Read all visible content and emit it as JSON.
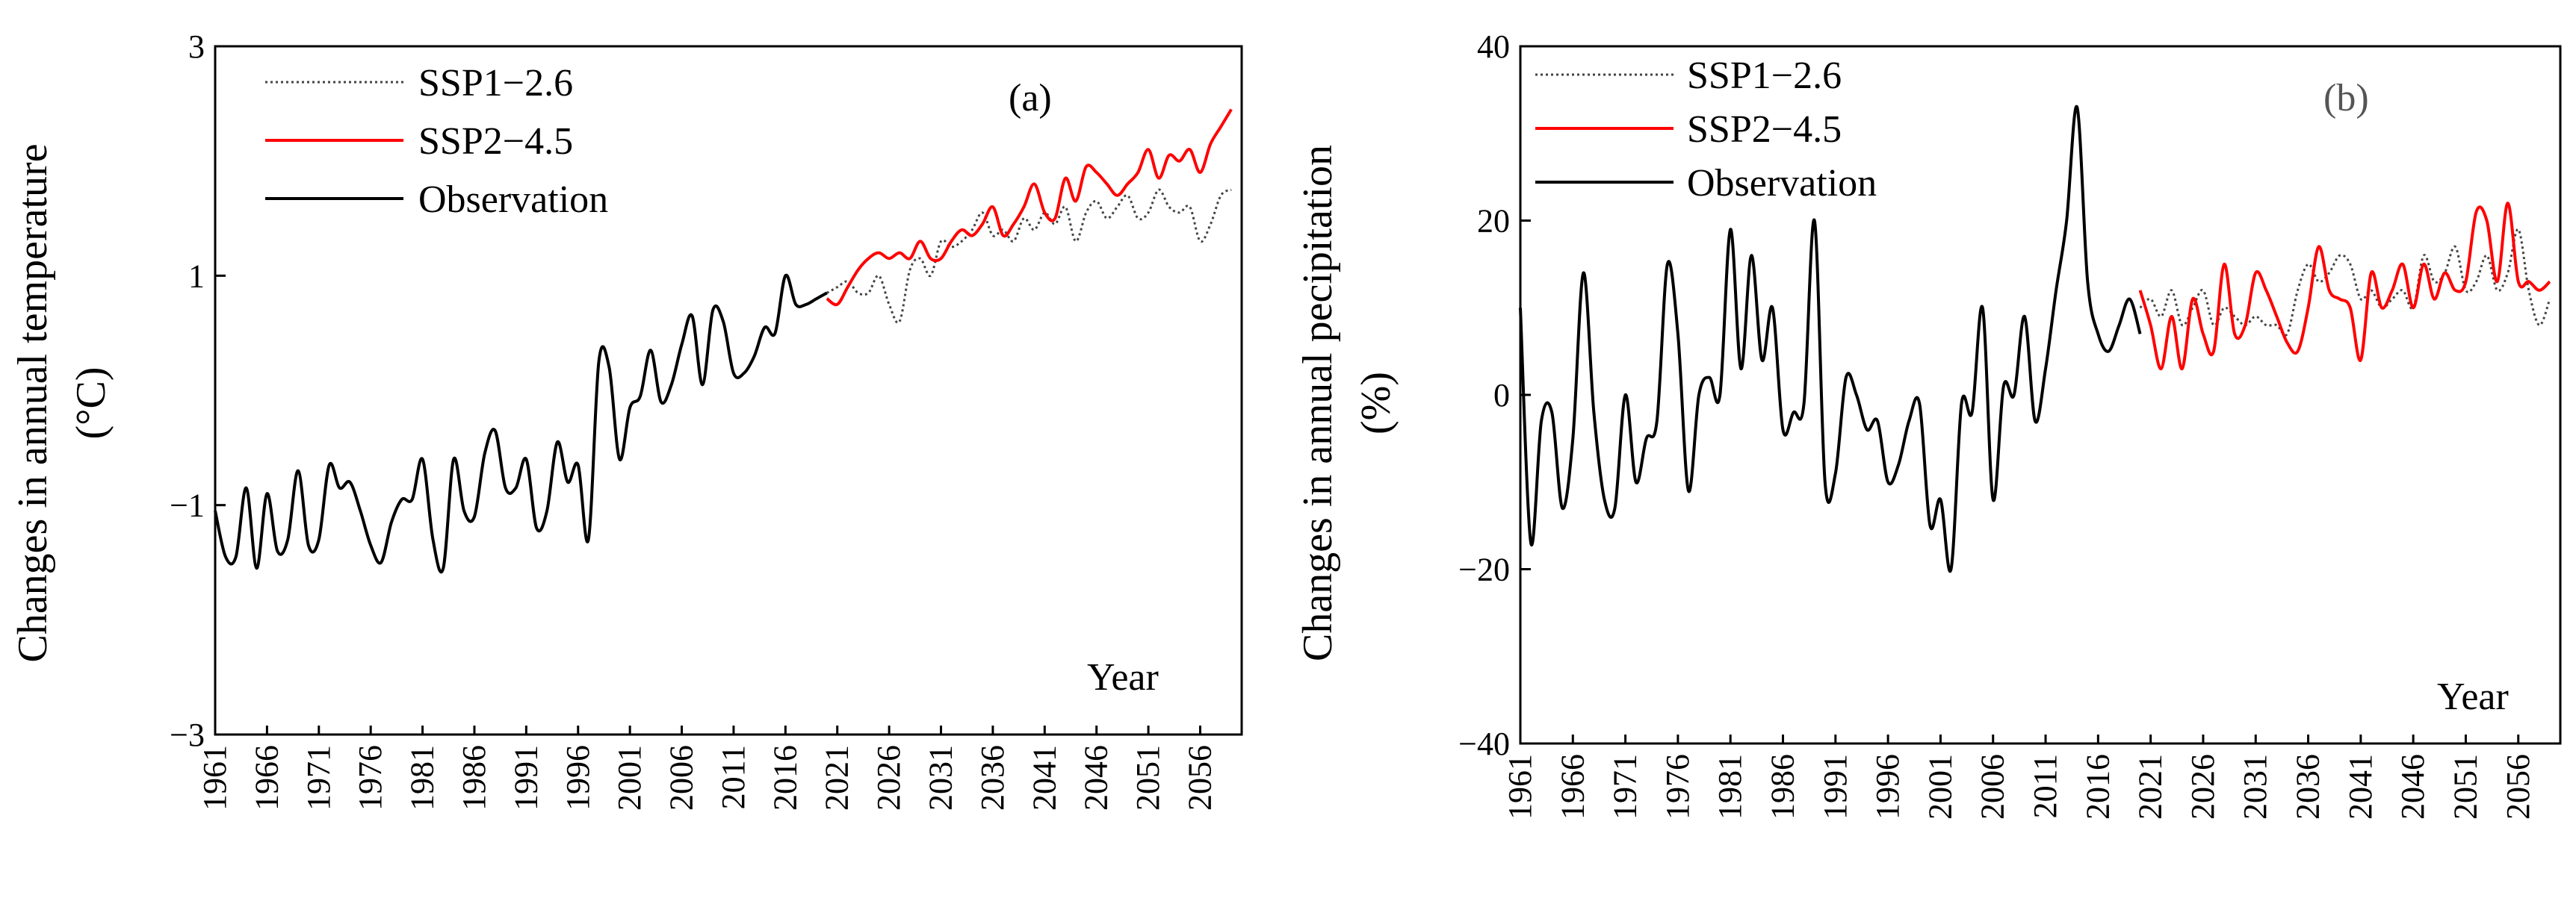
{
  "chart_data": [
    {
      "id": "a",
      "type": "line",
      "panel_label": "(a)",
      "xlabel": "Year",
      "ylabel_line1": "Changes in annual temperature",
      "ylabel_line2": "(°C)",
      "xlim": [
        1961,
        2060
      ],
      "ylim": [
        -3,
        3
      ],
      "yticks": [
        -3,
        -1,
        1,
        3
      ],
      "ytick_labels": [
        "−3",
        "−1",
        "1",
        "3"
      ],
      "xticks": [
        1961,
        1966,
        1971,
        1976,
        1981,
        1986,
        1991,
        1996,
        2001,
        2006,
        2011,
        2016,
        2021,
        2026,
        2031,
        2036,
        2041,
        2046,
        2051,
        2056
      ],
      "xtick_labels": [
        "1961",
        "1966",
        "1971",
        "1976",
        "1981",
        "1986",
        "1991",
        "1996",
        "2001",
        "2006",
        "2011",
        "2016",
        "2021",
        "2026",
        "2031",
        "2036",
        "2041",
        "2046",
        "2051",
        "2056"
      ],
      "legend": [
        "SSP1−2.6",
        "SSP2−4.5",
        "Observation"
      ],
      "series": [
        {
          "name": "Observation",
          "color": "#000000",
          "style": "solid",
          "x_start": 1961,
          "values": [
            -1.05,
            -1.45,
            -1.45,
            -0.85,
            -1.55,
            -0.9,
            -1.4,
            -1.3,
            -0.7,
            -1.35,
            -1.3,
            -0.65,
            -0.85,
            -0.8,
            -1.05,
            -1.35,
            -1.5,
            -1.15,
            -0.95,
            -0.95,
            -0.6,
            -1.3,
            -1.55,
            -0.6,
            -1.05,
            -1.1,
            -0.55,
            -0.35,
            -0.85,
            -0.85,
            -0.6,
            -1.2,
            -1.05,
            -0.45,
            -0.8,
            -0.65,
            -1.3,
            0.25,
            0.2,
            -0.6,
            -0.15,
            -0.05,
            0.35,
            -0.1,
            0.05,
            0.4,
            0.65,
            0.05,
            0.7,
            0.6,
            0.15,
            0.15,
            0.3,
            0.55,
            0.5,
            1.0,
            0.75,
            0.75,
            0.8,
            0.85
          ]
        },
        {
          "name": "SSP1−2.6",
          "color": "#444444",
          "style": "dotted",
          "x_start": 2020,
          "values": [
            0.85,
            0.9,
            0.95,
            0.85,
            0.85,
            1.0,
            0.75,
            0.6,
            1.05,
            1.15,
            1.0,
            1.3,
            1.25,
            1.3,
            1.4,
            1.55,
            1.35,
            1.4,
            1.3,
            1.5,
            1.4,
            1.55,
            1.45,
            1.6,
            1.3,
            1.55,
            1.65,
            1.5,
            1.6,
            1.7,
            1.5,
            1.55,
            1.75,
            1.6,
            1.55,
            1.6,
            1.3,
            1.45,
            1.7,
            1.75
          ]
        },
        {
          "name": "SSP2−4.5",
          "color": "#ff0000",
          "style": "solid",
          "x_start": 2020,
          "values": [
            0.8,
            0.75,
            0.9,
            1.05,
            1.15,
            1.2,
            1.15,
            1.2,
            1.15,
            1.3,
            1.15,
            1.15,
            1.3,
            1.4,
            1.35,
            1.45,
            1.6,
            1.35,
            1.45,
            1.6,
            1.8,
            1.55,
            1.5,
            1.85,
            1.65,
            1.95,
            1.9,
            1.8,
            1.7,
            1.8,
            1.9,
            2.1,
            1.85,
            2.05,
            2.0,
            2.1,
            1.9,
            2.15,
            2.3,
            2.45
          ]
        }
      ]
    },
    {
      "id": "b",
      "type": "line",
      "panel_label": "(b)",
      "xlabel": "Year",
      "ylabel_line1": "Changes in annual pecipitation",
      "ylabel_line2": "(%)",
      "xlim": [
        1961,
        2060
      ],
      "ylim": [
        -40,
        40
      ],
      "yticks": [
        -40,
        -20,
        0,
        20,
        40
      ],
      "ytick_labels": [
        "−40",
        "−20",
        "0",
        "20",
        "40"
      ],
      "xticks": [
        1961,
        1966,
        1971,
        1976,
        1981,
        1986,
        1991,
        1996,
        2001,
        2006,
        2011,
        2016,
        2021,
        2026,
        2031,
        2036,
        2041,
        2046,
        2051,
        2056
      ],
      "xtick_labels": [
        "1961",
        "1966",
        "1971",
        "1976",
        "1981",
        "1986",
        "1991",
        "1996",
        "2001",
        "2006",
        "2011",
        "2016",
        "2021",
        "2026",
        "2031",
        "2036",
        "2041",
        "2046",
        "2051",
        "2056"
      ],
      "legend": [
        "SSP1−2.6",
        "SSP2−4.5",
        "Observation"
      ],
      "series": [
        {
          "name": "Observation",
          "color": "#000000",
          "style": "solid",
          "x_start": 1961,
          "values": [
            10,
            -17,
            -3,
            -2,
            -13,
            -5,
            14,
            -2,
            -12,
            -13,
            0,
            -10,
            -5,
            -3,
            15,
            7,
            -11,
            0,
            2,
            0,
            19,
            3,
            16,
            4,
            10,
            -4,
            -2,
            -1,
            20,
            -10,
            -9,
            2,
            0,
            -4,
            -3,
            -10,
            -8,
            -3,
            -1,
            -15,
            -12,
            -20,
            -1,
            -2,
            10,
            -12,
            1,
            0,
            9,
            -3,
            3,
            12,
            20,
            33,
            13,
            7,
            5,
            8,
            11,
            7
          ]
        },
        {
          "name": "SSP1−2.6",
          "color": "#444444",
          "style": "dotted",
          "x_start": 2020,
          "values": [
            10,
            11,
            9,
            12,
            8,
            10,
            12,
            8,
            10,
            9,
            8,
            9,
            8,
            8,
            7,
            12,
            15,
            13,
            14,
            16,
            15,
            11,
            12,
            10,
            11,
            12,
            10,
            16,
            13,
            14,
            17,
            12,
            13,
            16,
            12,
            14,
            19,
            12,
            8,
            11
          ]
        },
        {
          "name": "SSP2−4.5",
          "color": "#ff0000",
          "style": "solid",
          "x_start": 2020,
          "values": [
            12,
            8,
            3,
            9,
            3,
            11,
            7,
            5,
            15,
            7,
            8,
            14,
            12,
            9,
            6,
            5,
            10,
            17,
            12,
            11,
            10,
            4,
            14,
            10,
            12,
            15,
            10,
            15,
            11,
            14,
            12,
            13,
            21,
            20,
            13,
            22,
            13,
            13,
            12,
            13
          ]
        }
      ]
    }
  ]
}
